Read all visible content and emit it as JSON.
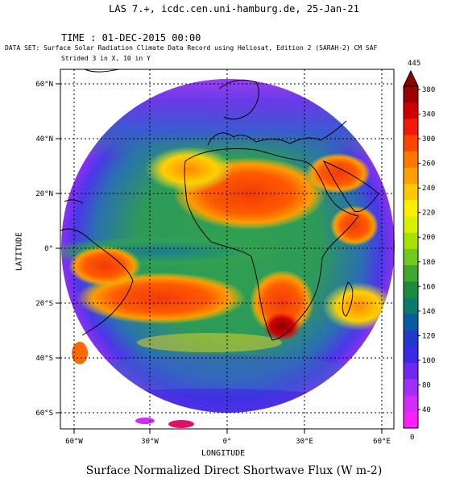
{
  "header": "LAS 7.+, icdc.cen.uni-hamburg.de, 25-Jan-21",
  "time_label": "TIME : 01-DEC-2015 00:00",
  "dataset_label": "DATA SET: Surface Solar Radiation Climate Data Record using Heliosat, Edition 2 (SARAH-2) CM SAF",
  "strided_label": "Strided 3 in X, 10 in Y",
  "x_axis_title": "LONGITUDE",
  "y_axis_title": "LATITUDE",
  "caption": "Surface Normalized Direct Shortwave Flux (W m-2)",
  "map": {
    "lon_ticks": [
      "60°W",
      "30°W",
      "0°",
      "30°E",
      "60°E"
    ],
    "lat_ticks": [
      "60°N",
      "40°N",
      "20°N",
      "0°",
      "20°S",
      "40°S",
      "60°S"
    ]
  },
  "colorbar": {
    "max_label": "445",
    "min_label": "0",
    "tick_labels": [
      "380",
      "340",
      "300",
      "260",
      "240",
      "220",
      "200",
      "180",
      "160",
      "140",
      "120",
      "100",
      "80",
      "40"
    ],
    "colors": [
      "#9a0000",
      "#cc0000",
      "#f21a0a",
      "#ff4400",
      "#ff7700",
      "#ffa000",
      "#ffc800",
      "#ffee00",
      "#d8f000",
      "#a8e000",
      "#70c820",
      "#40a830",
      "#1e8a40",
      "#0a7a6a",
      "#0a5aa0",
      "#1e3cc8",
      "#3c28e6",
      "#6e28f0",
      "#a030f5",
      "#d22cfa",
      "#ff1eff"
    ],
    "color_names": [
      "dark-red",
      "red",
      "red-orange",
      "orange",
      "amber",
      "gold",
      "yellow",
      "lemon",
      "chartreuse",
      "light-green",
      "green",
      "mid-green",
      "dark-green",
      "teal",
      "steel-blue",
      "blue",
      "indigo",
      "violet",
      "purple",
      "orchid",
      "magenta"
    ]
  }
}
